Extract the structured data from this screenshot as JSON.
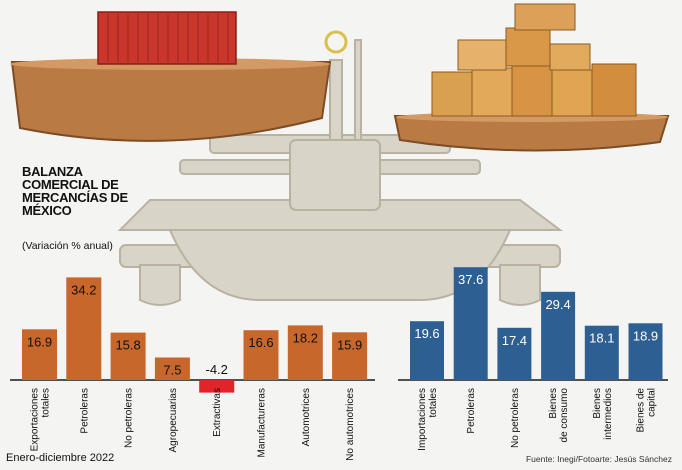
{
  "title": "BALANZA COMERCIAL DE MERCANCÍAS DE MÉXICO",
  "subtitle": "(Variación % anual)",
  "footer_left": "Enero-diciembre 2022",
  "footer_right": "Fuente: Inegi/Fotoarte: Jesús Sánchez",
  "colors": {
    "exports": "#c8672b",
    "imports": "#2e5f93",
    "negative": "#e0242a"
  },
  "chart_data": [
    {
      "type": "bar",
      "group": "exports",
      "categories": [
        "Exportaciones totales",
        "Petroleras",
        "No petroleras",
        "Agropecuarias",
        "Extractivas",
        "Manufactureras",
        "Automotrices",
        "No automotrices"
      ],
      "category_lines": [
        [
          "Exportaciones",
          "totales"
        ],
        [
          "Petroleras"
        ],
        [
          "No petroleras"
        ],
        [
          "Agropecuarias"
        ],
        [
          "Extractivas"
        ],
        [
          "Manufactureras"
        ],
        [
          "Automotrices"
        ],
        [
          "No automotrices"
        ]
      ],
      "values": [
        16.9,
        34.2,
        15.8,
        7.5,
        -4.2,
        16.6,
        18.2,
        15.9
      ],
      "value_labels": [
        "16.9",
        "34.2",
        "15.8",
        "7.5",
        "-4.2",
        "16.6",
        "18.2",
        "15.9"
      ]
    },
    {
      "type": "bar",
      "group": "imports",
      "categories": [
        "Importaciones totales",
        "Petroleras",
        "No petroleras",
        "Bienes de consumo",
        "Bienes intermedios",
        "Bienes de capital"
      ],
      "category_lines": [
        [
          "Importaciones",
          "totales"
        ],
        [
          "Petroleras"
        ],
        [
          "No petroleras"
        ],
        [
          "Bienes",
          "de consumo"
        ],
        [
          "Bienes",
          "intermedios"
        ],
        [
          "Bienes de",
          "capital"
        ]
      ],
      "values": [
        19.6,
        37.6,
        17.4,
        29.4,
        18.1,
        18.9
      ],
      "value_labels": [
        "19.6",
        "37.6",
        "17.4",
        "29.4",
        "18.1",
        "18.9"
      ]
    }
  ]
}
